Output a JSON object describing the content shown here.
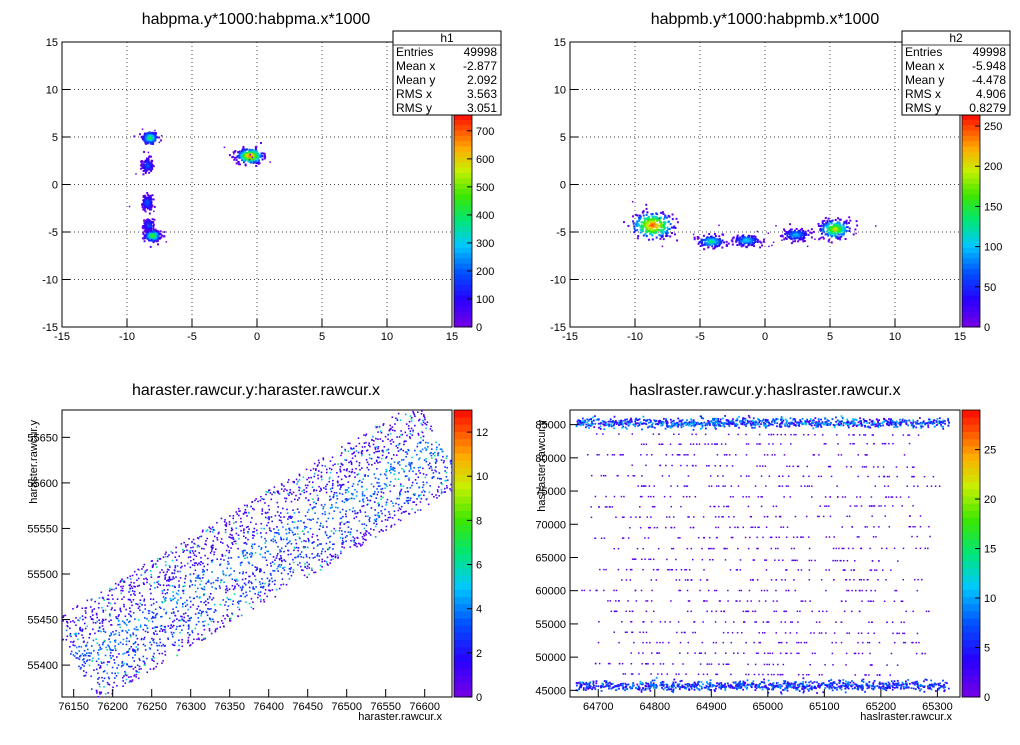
{
  "chart_data": [
    {
      "type": "heatmap",
      "title": "habpma.y*1000:habpma.x*1000",
      "xlabel": "",
      "ylabel": "",
      "xlim": [
        -15,
        15
      ],
      "ylim": [
        -15,
        15
      ],
      "xticks": [
        "-15",
        "-10",
        "-5",
        "0",
        "5",
        "10",
        "15"
      ],
      "yticks": [
        "-15",
        "-10",
        "-5",
        "0",
        "5",
        "10",
        "15"
      ],
      "grid": true,
      "zlim": [
        0,
        760
      ],
      "zticks": [
        "0",
        "100",
        "200",
        "300",
        "400",
        "500",
        "600",
        "700"
      ],
      "stats": {
        "name": "h1",
        "rows": [
          {
            "label": "Entries",
            "value": "49998"
          },
          {
            "label": "Mean x",
            "value": "-2.877"
          },
          {
            "label": "Mean y",
            "value": "2.092"
          },
          {
            "label": "RMS x",
            "value": "3.563"
          },
          {
            "label": "RMS y",
            "value": "3.051"
          }
        ]
      },
      "clusters": [
        {
          "x": -8.3,
          "y": 5.0,
          "sx": 0.3,
          "sy": 0.35,
          "level": 0.6
        },
        {
          "x": -8.5,
          "y": 2.1,
          "sx": 0.2,
          "sy": 0.4,
          "level": 0.3
        },
        {
          "x": -8.5,
          "y": -1.8,
          "sx": 0.2,
          "sy": 0.4,
          "level": 0.3
        },
        {
          "x": -8.4,
          "y": -4.2,
          "sx": 0.2,
          "sy": 0.3,
          "level": 0.3
        },
        {
          "x": -8.1,
          "y": -5.3,
          "sx": 0.3,
          "sy": 0.3,
          "level": 0.7
        },
        {
          "x": -0.6,
          "y": 3.1,
          "sx": 0.5,
          "sy": 0.4,
          "level": 1.0
        }
      ]
    },
    {
      "type": "heatmap",
      "title": "habpmb.y*1000:habpmb.x*1000",
      "xlabel": "",
      "ylabel": "",
      "xlim": [
        -15,
        15
      ],
      "ylim": [
        -15,
        15
      ],
      "xticks": [
        "-15",
        "-10",
        "-5",
        "0",
        "5",
        "10",
        "15"
      ],
      "yticks": [
        "-15",
        "-10",
        "-5",
        "0",
        "5",
        "10",
        "15"
      ],
      "grid": true,
      "zlim": [
        0,
        265
      ],
      "zticks": [
        "0",
        "50",
        "100",
        "150",
        "200",
        "250"
      ],
      "stats": {
        "name": "h2",
        "rows": [
          {
            "label": "Entries",
            "value": "49998"
          },
          {
            "label": "Mean x",
            "value": "-5.948"
          },
          {
            "label": "Mean y",
            "value": "-4.478"
          },
          {
            "label": "RMS x",
            "value": "4.906"
          },
          {
            "label": "RMS y",
            "value": "0.8279"
          }
        ]
      },
      "clusters": [
        {
          "x": -8.7,
          "y": -4.2,
          "sx": 0.8,
          "sy": 0.7,
          "level": 1.0
        },
        {
          "x": -4.2,
          "y": -5.9,
          "sx": 0.5,
          "sy": 0.3,
          "level": 0.55
        },
        {
          "x": -1.5,
          "y": -5.8,
          "sx": 0.5,
          "sy": 0.3,
          "level": 0.45
        },
        {
          "x": 2.3,
          "y": -5.2,
          "sx": 0.5,
          "sy": 0.3,
          "level": 0.4
        },
        {
          "x": 5.3,
          "y": -4.6,
          "sx": 0.6,
          "sy": 0.5,
          "level": 0.8
        }
      ]
    },
    {
      "type": "heatmap",
      "title": "haraster.rawcur.y:haraster.rawcur.x",
      "xlabel": "haraster.rawcur.x",
      "ylabel": "haraster.rawcur.y",
      "xlim": [
        76135,
        76635
      ],
      "ylim": [
        55365,
        55680
      ],
      "xticks": [
        "76150",
        "76200",
        "76250",
        "76300",
        "76350",
        "76400",
        "76450",
        "76500",
        "76550",
        "76600"
      ],
      "yticks": [
        "55400",
        "55450",
        "55500",
        "55550",
        "55600",
        "55650"
      ],
      "grid": false,
      "zlim": [
        0,
        13
      ],
      "zticks": [
        "0",
        "2",
        "4",
        "6",
        "8",
        "10",
        "12"
      ],
      "band": {
        "x0": 76150,
        "y0": 55405,
        "x1": 76620,
        "y1": 55645,
        "width": 95
      }
    },
    {
      "type": "heatmap",
      "title": "haslraster.rawcur.y:haslraster.rawcur.x",
      "xlabel": "haslraster.rawcur.x",
      "ylabel": "haslraster.rawcur.y",
      "xlim": [
        64650,
        65340
      ],
      "ylim": [
        44000,
        87200
      ],
      "xticks": [
        "64700",
        "64800",
        "64900",
        "65000",
        "65100",
        "65200",
        "65300"
      ],
      "yticks": [
        "45000",
        "50000",
        "55000",
        "60000",
        "65000",
        "70000",
        "75000",
        "80000",
        "85000"
      ],
      "grid": false,
      "zlim": [
        0,
        29
      ],
      "zticks": [
        "0",
        "5",
        "10",
        "15",
        "20",
        "25"
      ],
      "bands": [
        {
          "y": 85400,
          "x0": 64660,
          "x1": 65320,
          "level": 0.8
        },
        {
          "y": 45800,
          "x0": 64660,
          "x1": 65320,
          "level": 0.7
        }
      ]
    }
  ]
}
